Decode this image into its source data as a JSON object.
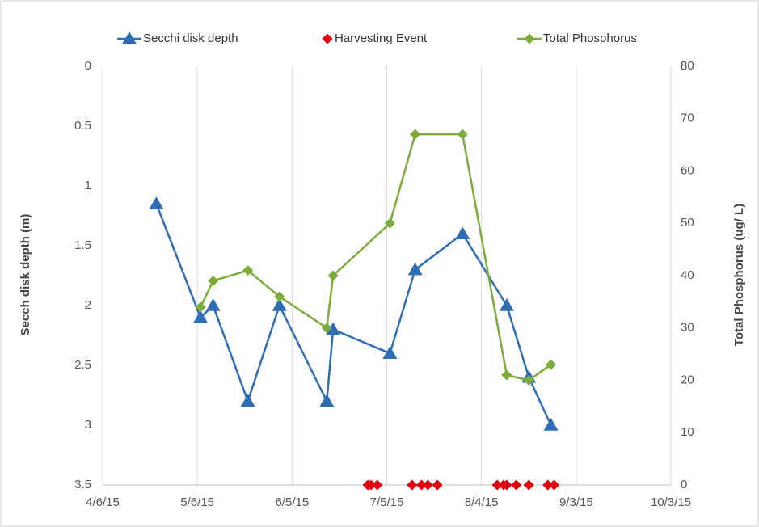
{
  "chart_data": {
    "type": "line",
    "ylabel": "Secch disk depth (m)",
    "y2label": "Total Phosphorus (ug/ L)",
    "xlim": [
      "4/6/15",
      "10/3/15"
    ],
    "xticks": [
      "4/6/15",
      "5/6/15",
      "6/5/15",
      "7/5/15",
      "8/4/15",
      "9/3/15",
      "10/3/15"
    ],
    "ylim": [
      0,
      3.5
    ],
    "yticks": [
      0,
      0.5,
      1,
      1.5,
      2,
      2.5,
      3,
      3.5
    ],
    "y_inverted": true,
    "y2lim": [
      0,
      80
    ],
    "y2ticks": [
      0,
      10,
      20,
      30,
      40,
      50,
      60,
      70,
      80
    ],
    "grid": "x",
    "legend": "top",
    "series": [
      {
        "name": "Secchi disk depth",
        "color": "#2f6db5",
        "marker": "triangle",
        "line": true,
        "x": [
          "4/23/15",
          "5/7/15",
          "5/11/15",
          "5/22/15",
          "6/1/15",
          "6/16/15",
          "6/18/15",
          "7/6/15",
          "7/14/15",
          "7/29/15",
          "8/12/15",
          "8/19/15",
          "8/26/15"
        ],
        "values": [
          1.15,
          2.1,
          2.0,
          2.8,
          2.0,
          2.8,
          2.2,
          2.4,
          1.7,
          1.4,
          2.0,
          2.6,
          3.0
        ]
      },
      {
        "name": "Harvesting Event",
        "color": "#e3000f",
        "marker": "diamond",
        "line": false,
        "axis": "y2",
        "x": [
          "6/29/15",
          "6/30/15",
          "7/2/15",
          "7/13/15",
          "7/16/15",
          "7/18/15",
          "7/21/15",
          "8/9/15",
          "8/11/15",
          "8/12/15",
          "8/15/15",
          "8/19/15",
          "8/25/15",
          "8/27/15"
        ],
        "values": [
          0,
          0,
          0,
          0,
          0,
          0,
          0,
          0,
          0,
          0,
          0,
          0,
          0,
          0
        ]
      },
      {
        "name": "Total Phosphorus",
        "color": "#7cab3c",
        "marker": "diamond",
        "line": true,
        "axis": "y2",
        "x": [
          "5/7/15",
          "5/11/15",
          "5/22/15",
          "6/1/15",
          "6/16/15",
          "6/18/15",
          "7/6/15",
          "7/14/15",
          "7/29/15",
          "8/12/15",
          "8/19/15",
          "8/26/15"
        ],
        "values": [
          34,
          39,
          41,
          36,
          30,
          40,
          50,
          67,
          67,
          21,
          20,
          23
        ]
      }
    ]
  }
}
